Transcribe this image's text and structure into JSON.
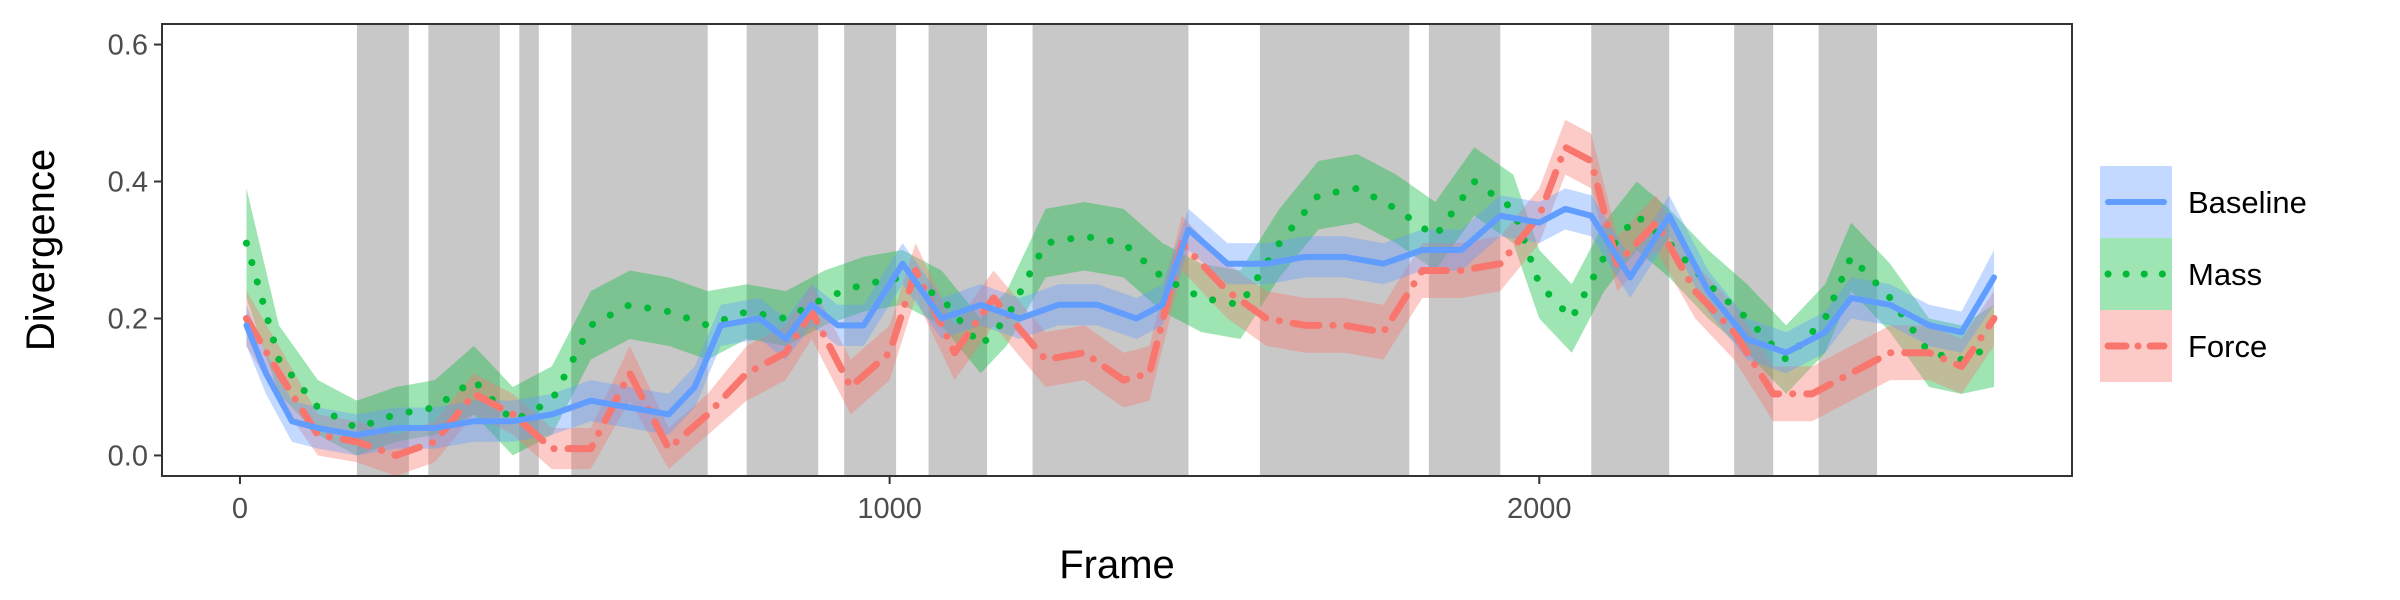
{
  "chart_data": {
    "type": "line",
    "title": "",
    "xlabel": "Frame",
    "ylabel": "Divergence",
    "xlim": [
      -120,
      2820
    ],
    "ylim": [
      -0.03,
      0.63
    ],
    "x_ticks": [
      0,
      1000,
      2000
    ],
    "x_tick_labels": [
      "0",
      "1000",
      "2000"
    ],
    "y_ticks": [
      0.0,
      0.2,
      0.4,
      0.6
    ],
    "y_tick_labels": [
      "0.0",
      "0.2",
      "0.4",
      "0.6"
    ],
    "grid": false,
    "legend_position": "right",
    "shaded_intervals": [
      [
        180,
        260
      ],
      [
        290,
        400
      ],
      [
        430,
        460
      ],
      [
        510,
        720
      ],
      [
        780,
        890
      ],
      [
        930,
        1010
      ],
      [
        1060,
        1150
      ],
      [
        1220,
        1460
      ],
      [
        1570,
        1800
      ],
      [
        1830,
        1940
      ],
      [
        2080,
        2200
      ],
      [
        2300,
        2360
      ],
      [
        2430,
        2520
      ]
    ],
    "series": [
      {
        "name": "Mass",
        "color": "#00ba38",
        "style": "dotted",
        "points": [
          [
            10,
            0.31,
            0.23,
            0.39
          ],
          [
            60,
            0.14,
            0.09,
            0.19
          ],
          [
            120,
            0.07,
            0.03,
            0.11
          ],
          [
            180,
            0.04,
            0.0,
            0.08
          ],
          [
            240,
            0.06,
            0.02,
            0.1
          ],
          [
            300,
            0.07,
            0.03,
            0.11
          ],
          [
            360,
            0.11,
            0.06,
            0.16
          ],
          [
            420,
            0.05,
            0.0,
            0.1
          ],
          [
            480,
            0.08,
            0.03,
            0.13
          ],
          [
            540,
            0.19,
            0.14,
            0.24
          ],
          [
            600,
            0.22,
            0.17,
            0.27
          ],
          [
            660,
            0.21,
            0.16,
            0.26
          ],
          [
            720,
            0.19,
            0.14,
            0.24
          ],
          [
            780,
            0.21,
            0.17,
            0.25
          ],
          [
            840,
            0.2,
            0.16,
            0.24
          ],
          [
            900,
            0.23,
            0.19,
            0.27
          ],
          [
            960,
            0.25,
            0.21,
            0.29
          ],
          [
            1020,
            0.26,
            0.22,
            0.3
          ],
          [
            1080,
            0.23,
            0.19,
            0.27
          ],
          [
            1140,
            0.16,
            0.12,
            0.2
          ],
          [
            1180,
            0.2,
            0.16,
            0.24
          ],
          [
            1240,
            0.31,
            0.26,
            0.36
          ],
          [
            1300,
            0.32,
            0.27,
            0.37
          ],
          [
            1360,
            0.31,
            0.26,
            0.36
          ],
          [
            1420,
            0.26,
            0.21,
            0.31
          ],
          [
            1480,
            0.23,
            0.18,
            0.28
          ],
          [
            1540,
            0.22,
            0.17,
            0.27
          ],
          [
            1600,
            0.31,
            0.26,
            0.36
          ],
          [
            1660,
            0.38,
            0.33,
            0.43
          ],
          [
            1720,
            0.39,
            0.34,
            0.44
          ],
          [
            1780,
            0.36,
            0.31,
            0.41
          ],
          [
            1840,
            0.32,
            0.27,
            0.37
          ],
          [
            1900,
            0.4,
            0.35,
            0.45
          ],
          [
            1960,
            0.36,
            0.31,
            0.41
          ],
          [
            2000,
            0.25,
            0.2,
            0.3
          ],
          [
            2050,
            0.2,
            0.15,
            0.25
          ],
          [
            2100,
            0.29,
            0.24,
            0.34
          ],
          [
            2150,
            0.35,
            0.3,
            0.4
          ],
          [
            2200,
            0.31,
            0.26,
            0.36
          ],
          [
            2260,
            0.25,
            0.2,
            0.3
          ],
          [
            2320,
            0.2,
            0.15,
            0.25
          ],
          [
            2380,
            0.14,
            0.09,
            0.19
          ],
          [
            2440,
            0.2,
            0.15,
            0.25
          ],
          [
            2480,
            0.29,
            0.24,
            0.34
          ],
          [
            2540,
            0.23,
            0.18,
            0.28
          ],
          [
            2600,
            0.15,
            0.1,
            0.2
          ],
          [
            2650,
            0.14,
            0.09,
            0.19
          ],
          [
            2700,
            0.16,
            0.1,
            0.22
          ]
        ]
      },
      {
        "name": "Force",
        "color": "#f8766d",
        "style": "dashdot",
        "points": [
          [
            10,
            0.2,
            0.16,
            0.24
          ],
          [
            60,
            0.12,
            0.08,
            0.16
          ],
          [
            120,
            0.03,
            0.0,
            0.06
          ],
          [
            180,
            0.02,
            -0.01,
            0.05
          ],
          [
            240,
            0.0,
            -0.03,
            0.03
          ],
          [
            300,
            0.02,
            -0.01,
            0.05
          ],
          [
            360,
            0.09,
            0.06,
            0.12
          ],
          [
            420,
            0.06,
            0.03,
            0.09
          ],
          [
            480,
            0.01,
            -0.02,
            0.04
          ],
          [
            540,
            0.01,
            -0.02,
            0.04
          ],
          [
            600,
            0.12,
            0.08,
            0.16
          ],
          [
            660,
            0.01,
            -0.02,
            0.04
          ],
          [
            720,
            0.06,
            0.03,
            0.09
          ],
          [
            780,
            0.12,
            0.08,
            0.16
          ],
          [
            840,
            0.15,
            0.11,
            0.19
          ],
          [
            880,
            0.21,
            0.17,
            0.25
          ],
          [
            940,
            0.1,
            0.06,
            0.14
          ],
          [
            1000,
            0.15,
            0.11,
            0.19
          ],
          [
            1040,
            0.27,
            0.23,
            0.31
          ],
          [
            1100,
            0.15,
            0.11,
            0.19
          ],
          [
            1160,
            0.23,
            0.19,
            0.27
          ],
          [
            1240,
            0.14,
            0.1,
            0.18
          ],
          [
            1300,
            0.15,
            0.11,
            0.19
          ],
          [
            1360,
            0.11,
            0.07,
            0.15
          ],
          [
            1400,
            0.12,
            0.08,
            0.16
          ],
          [
            1450,
            0.31,
            0.27,
            0.35
          ],
          [
            1520,
            0.24,
            0.2,
            0.28
          ],
          [
            1580,
            0.2,
            0.16,
            0.24
          ],
          [
            1640,
            0.19,
            0.15,
            0.23
          ],
          [
            1700,
            0.19,
            0.15,
            0.23
          ],
          [
            1760,
            0.18,
            0.14,
            0.22
          ],
          [
            1820,
            0.27,
            0.23,
            0.31
          ],
          [
            1880,
            0.27,
            0.23,
            0.31
          ],
          [
            1940,
            0.28,
            0.24,
            0.32
          ],
          [
            2000,
            0.35,
            0.31,
            0.39
          ],
          [
            2040,
            0.45,
            0.41,
            0.49
          ],
          [
            2080,
            0.43,
            0.39,
            0.47
          ],
          [
            2120,
            0.28,
            0.24,
            0.32
          ],
          [
            2180,
            0.34,
            0.3,
            0.38
          ],
          [
            2240,
            0.24,
            0.2,
            0.28
          ],
          [
            2300,
            0.18,
            0.14,
            0.22
          ],
          [
            2360,
            0.09,
            0.05,
            0.13
          ],
          [
            2420,
            0.09,
            0.05,
            0.13
          ],
          [
            2480,
            0.12,
            0.08,
            0.16
          ],
          [
            2540,
            0.15,
            0.11,
            0.19
          ],
          [
            2600,
            0.15,
            0.11,
            0.19
          ],
          [
            2650,
            0.13,
            0.09,
            0.17
          ],
          [
            2700,
            0.2,
            0.16,
            0.24
          ]
        ]
      },
      {
        "name": "Baseline",
        "color": "#619cff",
        "style": "solid",
        "points": [
          [
            10,
            0.19,
            0.16,
            0.22
          ],
          [
            40,
            0.12,
            0.09,
            0.15
          ],
          [
            80,
            0.05,
            0.02,
            0.08
          ],
          [
            120,
            0.04,
            0.01,
            0.07
          ],
          [
            180,
            0.03,
            0.0,
            0.06
          ],
          [
            240,
            0.04,
            0.01,
            0.07
          ],
          [
            300,
            0.04,
            0.01,
            0.07
          ],
          [
            360,
            0.05,
            0.02,
            0.08
          ],
          [
            420,
            0.05,
            0.02,
            0.08
          ],
          [
            480,
            0.06,
            0.03,
            0.09
          ],
          [
            540,
            0.08,
            0.05,
            0.11
          ],
          [
            600,
            0.07,
            0.04,
            0.1
          ],
          [
            660,
            0.06,
            0.03,
            0.09
          ],
          [
            700,
            0.1,
            0.07,
            0.13
          ],
          [
            740,
            0.19,
            0.16,
            0.22
          ],
          [
            800,
            0.2,
            0.17,
            0.23
          ],
          [
            840,
            0.17,
            0.14,
            0.2
          ],
          [
            880,
            0.22,
            0.19,
            0.25
          ],
          [
            920,
            0.19,
            0.16,
            0.22
          ],
          [
            960,
            0.19,
            0.16,
            0.22
          ],
          [
            1020,
            0.28,
            0.25,
            0.31
          ],
          [
            1080,
            0.2,
            0.17,
            0.23
          ],
          [
            1140,
            0.22,
            0.19,
            0.25
          ],
          [
            1200,
            0.2,
            0.17,
            0.23
          ],
          [
            1260,
            0.22,
            0.19,
            0.25
          ],
          [
            1320,
            0.22,
            0.19,
            0.25
          ],
          [
            1380,
            0.2,
            0.17,
            0.23
          ],
          [
            1420,
            0.22,
            0.19,
            0.25
          ],
          [
            1460,
            0.33,
            0.3,
            0.36
          ],
          [
            1520,
            0.28,
            0.25,
            0.31
          ],
          [
            1580,
            0.28,
            0.25,
            0.31
          ],
          [
            1640,
            0.29,
            0.26,
            0.32
          ],
          [
            1700,
            0.29,
            0.26,
            0.32
          ],
          [
            1760,
            0.28,
            0.25,
            0.31
          ],
          [
            1820,
            0.3,
            0.27,
            0.33
          ],
          [
            1880,
            0.3,
            0.27,
            0.33
          ],
          [
            1940,
            0.35,
            0.32,
            0.38
          ],
          [
            2000,
            0.34,
            0.31,
            0.37
          ],
          [
            2040,
            0.36,
            0.33,
            0.39
          ],
          [
            2080,
            0.35,
            0.32,
            0.38
          ],
          [
            2140,
            0.26,
            0.23,
            0.29
          ],
          [
            2200,
            0.35,
            0.32,
            0.38
          ],
          [
            2260,
            0.24,
            0.21,
            0.27
          ],
          [
            2320,
            0.17,
            0.14,
            0.2
          ],
          [
            2380,
            0.15,
            0.12,
            0.18
          ],
          [
            2440,
            0.18,
            0.15,
            0.21
          ],
          [
            2480,
            0.23,
            0.2,
            0.26
          ],
          [
            2540,
            0.22,
            0.19,
            0.25
          ],
          [
            2600,
            0.19,
            0.16,
            0.22
          ],
          [
            2650,
            0.18,
            0.15,
            0.21
          ],
          [
            2700,
            0.26,
            0.22,
            0.3
          ]
        ]
      }
    ],
    "legend": [
      {
        "name": "Baseline",
        "color": "#619cff",
        "style": "solid"
      },
      {
        "name": "Mass",
        "color": "#00ba38",
        "style": "dotted"
      },
      {
        "name": "Force",
        "color": "#f8766d",
        "style": "dashdot"
      }
    ]
  }
}
